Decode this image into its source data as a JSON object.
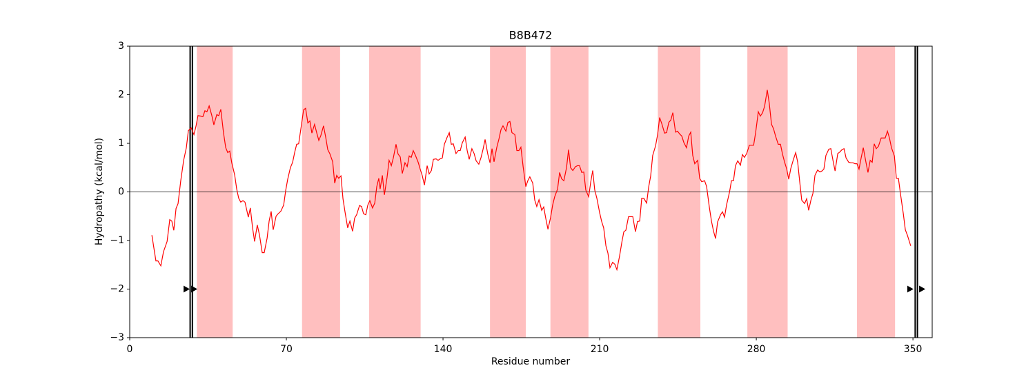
{
  "chart_data": {
    "type": "line",
    "title": "B8B472",
    "xlabel": "Residue number",
    "ylabel": "Hydropathy (kcal/mol)",
    "color": "#ff0000",
    "xlim": [
      0,
      358.6
    ],
    "ylim": [
      -3,
      3
    ],
    "xticks": [
      0,
      70,
      140,
      210,
      280,
      350
    ],
    "yticks": [
      {
        "value": -3,
        "label": "−3"
      },
      {
        "value": -2,
        "label": "−2"
      },
      {
        "value": -1,
        "label": "−1"
      },
      0,
      1,
      2,
      3
    ],
    "regions": [
      [
        30,
        46
      ],
      [
        77,
        94
      ],
      [
        107,
        130
      ],
      [
        161,
        177
      ],
      [
        188,
        205
      ],
      [
        236,
        255
      ],
      [
        276,
        294
      ],
      [
        325,
        342
      ]
    ],
    "region_color": "#ffbfbf",
    "hline": 0,
    "vlines": [
      27,
      28,
      351,
      352
    ],
    "arrows": {
      "x": [
        25.3,
        28.7,
        348.7,
        354
      ],
      "y": -2
    },
    "x": [
      9.9,
      11.7,
      12.6,
      13.9,
      15.1,
      16.7,
      17.9,
      18.8,
      19.7,
      20.7,
      21.6,
      22.8,
      24.1,
      25.3,
      26.2,
      27.4,
      28.7,
      29.6,
      30.5,
      31.8,
      32.7,
      33.6,
      34.5,
      35.5,
      36.7,
      37.6,
      38.9,
      39.8,
      40.7,
      41.9,
      42.9,
      43.8,
      44.7,
      45.6,
      46.9,
      47.8,
      48.7,
      49.6,
      50.6,
      51.5,
      53.0,
      53.9,
      54.9,
      55.8,
      57.0,
      58.0,
      59.2,
      60.1,
      61.4,
      62.3,
      63.2,
      64.1,
      65.4,
      66.3,
      67.5,
      68.8,
      69.7,
      70.6,
      71.8,
      72.8,
      73.7,
      74.6,
      75.5,
      76.8,
      77.7,
      78.6,
      79.6,
      80.5,
      81.4,
      82.6,
      83.6,
      84.5,
      85.4,
      86.6,
      87.6,
      88.5,
      89.4,
      90.7,
      91.6,
      92.5,
      93.4,
      94.4,
      95.3,
      96.2,
      97.4,
      98.4,
      99.6,
      100.5,
      101.4,
      102.7,
      103.6,
      104.5,
      105.5,
      106.4,
      107.3,
      108.5,
      109.5,
      110.4,
      111.3,
      111.9,
      112.9,
      113.8,
      115.0,
      115.9,
      116.9,
      117.8,
      119.0,
      119.9,
      120.9,
      121.8,
      123.0,
      124.0,
      124.9,
      125.8,
      126.7,
      127.7,
      128.9,
      129.8,
      130.7,
      131.7,
      132.9,
      133.8,
      134.8,
      135.7,
      136.9,
      137.8,
      138.7,
      139.7,
      140.6,
      141.8,
      142.8,
      143.7,
      144.6,
      145.8,
      146.8,
      147.7,
      148.6,
      149.9,
      150.8,
      151.7,
      152.9,
      153.9,
      154.8,
      156.0,
      157.0,
      157.9,
      158.8,
      160.0,
      161.0,
      161.9,
      162.8,
      164.0,
      165.0,
      165.9,
      166.8,
      168.1,
      169.0,
      169.9,
      170.8,
      172.1,
      173.0,
      173.9,
      174.8,
      175.8,
      177.0,
      177.9,
      178.8,
      180.1,
      181.0,
      181.9,
      182.9,
      184.1,
      185.0,
      185.9,
      186.9,
      188.1,
      189.0,
      189.9,
      191.2,
      192.1,
      193.0,
      194.0,
      195.2,
      196.1,
      197.0,
      198.0,
      199.2,
      200.1,
      201.0,
      202.0,
      202.9,
      203.8,
      205.1,
      206.0,
      206.9,
      207.8,
      208.8,
      210.0,
      210.9,
      211.8,
      212.8,
      213.7,
      214.6,
      215.8,
      216.8,
      217.7,
      218.9,
      219.9,
      220.8,
      221.7,
      222.9,
      223.9,
      224.8,
      226.0,
      226.9,
      227.9,
      228.8,
      229.7,
      231.0,
      231.9,
      232.8,
      233.7,
      235.0,
      235.9,
      236.8,
      237.8,
      239.0,
      239.9,
      240.9,
      241.8,
      242.7,
      243.9,
      244.8,
      245.8,
      246.7,
      247.6,
      248.8,
      249.8,
      250.7,
      251.6,
      252.5,
      253.8,
      254.7,
      255.6,
      256.9,
      257.8,
      259.0,
      260.0,
      260.9,
      261.8,
      262.7,
      264.0,
      264.9,
      265.8,
      266.7,
      268.0,
      268.9,
      269.8,
      270.7,
      271.7,
      272.9,
      273.8,
      274.7,
      275.7,
      276.9,
      277.8,
      278.8,
      279.7,
      280.9,
      281.8,
      282.8,
      283.7,
      284.9,
      285.8,
      286.8,
      287.7,
      288.6,
      289.8,
      290.8,
      291.7,
      292.6,
      293.6,
      294.5,
      295.4,
      296.6,
      297.6,
      298.5,
      299.4,
      300.3,
      301.6,
      302.5,
      303.4,
      304.4,
      305.3,
      306.2,
      307.4,
      308.4,
      309.3,
      310.2,
      311.1,
      312.4,
      313.3,
      314.3,
      315.2,
      316.4,
      317.3,
      318.3,
      319.2,
      320.1,
      321.3,
      322.2,
      323.2,
      324.1,
      325.0,
      325.9,
      326.9,
      327.8,
      329.0,
      329.9,
      330.9,
      331.8,
      332.7,
      333.6,
      334.6,
      335.8,
      336.7,
      337.6,
      338.6,
      339.5,
      340.4,
      341.7,
      342.6,
      343.5,
      344.4,
      345.7,
      346.6,
      347.5,
      349.0
    ],
    "values": [
      -0.89,
      -1.42,
      -1.42,
      -1.52,
      -1.23,
      -1.02,
      -0.57,
      -0.6,
      -0.79,
      -0.34,
      -0.24,
      0.23,
      0.65,
      0.91,
      1.26,
      1.32,
      1.18,
      1.35,
      1.57,
      1.56,
      1.55,
      1.67,
      1.65,
      1.77,
      1.57,
      1.38,
      1.59,
      1.57,
      1.7,
      1.22,
      0.91,
      0.81,
      0.84,
      0.6,
      0.35,
      0.06,
      -0.13,
      -0.21,
      -0.18,
      -0.21,
      -0.52,
      -0.33,
      -0.74,
      -1.02,
      -0.68,
      -0.89,
      -1.25,
      -1.25,
      -0.95,
      -0.6,
      -0.4,
      -0.78,
      -0.5,
      -0.45,
      -0.4,
      -0.27,
      0.03,
      0.26,
      0.5,
      0.61,
      0.81,
      0.98,
      0.99,
      1.4,
      1.69,
      1.72,
      1.42,
      1.46,
      1.21,
      1.39,
      1.21,
      1.06,
      1.16,
      1.36,
      1.12,
      0.87,
      0.79,
      0.62,
      0.18,
      0.34,
      0.28,
      0.33,
      -0.14,
      -0.41,
      -0.74,
      -0.6,
      -0.81,
      -0.54,
      -0.47,
      -0.28,
      -0.3,
      -0.45,
      -0.47,
      -0.27,
      -0.18,
      -0.33,
      -0.23,
      0.11,
      0.28,
      0.06,
      0.34,
      -0.06,
      0.3,
      0.65,
      0.54,
      0.7,
      0.98,
      0.78,
      0.72,
      0.38,
      0.6,
      0.52,
      0.74,
      0.71,
      0.85,
      0.75,
      0.61,
      0.47,
      0.34,
      0.14,
      0.54,
      0.37,
      0.44,
      0.67,
      0.68,
      0.65,
      0.68,
      0.7,
      0.98,
      1.12,
      1.22,
      0.98,
      0.99,
      0.79,
      0.85,
      0.85,
      1.01,
      1.13,
      0.85,
      0.67,
      0.89,
      0.79,
      0.64,
      0.57,
      0.71,
      0.88,
      1.08,
      0.78,
      0.6,
      0.89,
      0.62,
      0.91,
      1.09,
      1.28,
      1.36,
      1.25,
      1.43,
      1.45,
      1.22,
      1.18,
      0.85,
      0.85,
      0.92,
      0.52,
      0.11,
      0.23,
      0.31,
      0.18,
      -0.17,
      -0.3,
      -0.16,
      -0.38,
      -0.31,
      -0.54,
      -0.77,
      -0.52,
      -0.27,
      -0.1,
      0.06,
      0.4,
      0.27,
      0.23,
      0.5,
      0.87,
      0.5,
      0.44,
      0.52,
      0.54,
      0.54,
      0.4,
      0.41,
      0.04,
      -0.1,
      0.2,
      0.44,
      0.04,
      -0.14,
      -0.43,
      -0.61,
      -0.74,
      -1.11,
      -1.26,
      -1.56,
      -1.45,
      -1.49,
      -1.6,
      -1.32,
      -1.04,
      -0.82,
      -0.79,
      -0.51,
      -0.51,
      -0.51,
      -0.82,
      -0.61,
      -0.6,
      -0.13,
      -0.13,
      -0.23,
      0.1,
      0.33,
      0.75,
      0.95,
      1.18,
      1.53,
      1.4,
      1.21,
      1.22,
      1.43,
      1.48,
      1.63,
      1.23,
      1.25,
      1.19,
      1.15,
      1.02,
      0.91,
      1.15,
      1.23,
      0.75,
      0.58,
      0.65,
      0.28,
      0.21,
      0.23,
      0.11,
      -0.31,
      -0.61,
      -0.81,
      -0.96,
      -0.62,
      -0.47,
      -0.41,
      -0.52,
      -0.27,
      -0.01,
      0.23,
      0.23,
      0.54,
      0.64,
      0.55,
      0.77,
      0.71,
      0.79,
      0.96,
      0.96,
      0.96,
      1.22,
      1.65,
      1.56,
      1.63,
      1.76,
      2.1,
      1.82,
      1.39,
      1.3,
      1.15,
      0.98,
      0.98,
      0.78,
      0.62,
      0.47,
      0.26,
      0.48,
      0.67,
      0.81,
      0.61,
      0.21,
      -0.17,
      -0.24,
      -0.14,
      -0.38,
      -0.17,
      -0.03,
      0.34,
      0.45,
      0.41,
      0.43,
      0.47,
      0.75,
      0.88,
      0.89,
      0.64,
      0.43,
      0.79,
      0.82,
      0.87,
      0.89,
      0.7,
      0.61,
      0.6,
      0.6,
      0.58,
      0.58,
      0.47,
      0.71,
      0.91,
      0.61,
      0.4,
      0.65,
      0.61,
      0.99,
      0.89,
      0.94,
      1.11,
      1.11,
      1.11,
      1.25,
      1.11,
      0.91,
      0.74,
      0.28,
      0.28,
      -0.03,
      -0.45,
      -0.78,
      -0.89,
      -1.11
    ]
  }
}
